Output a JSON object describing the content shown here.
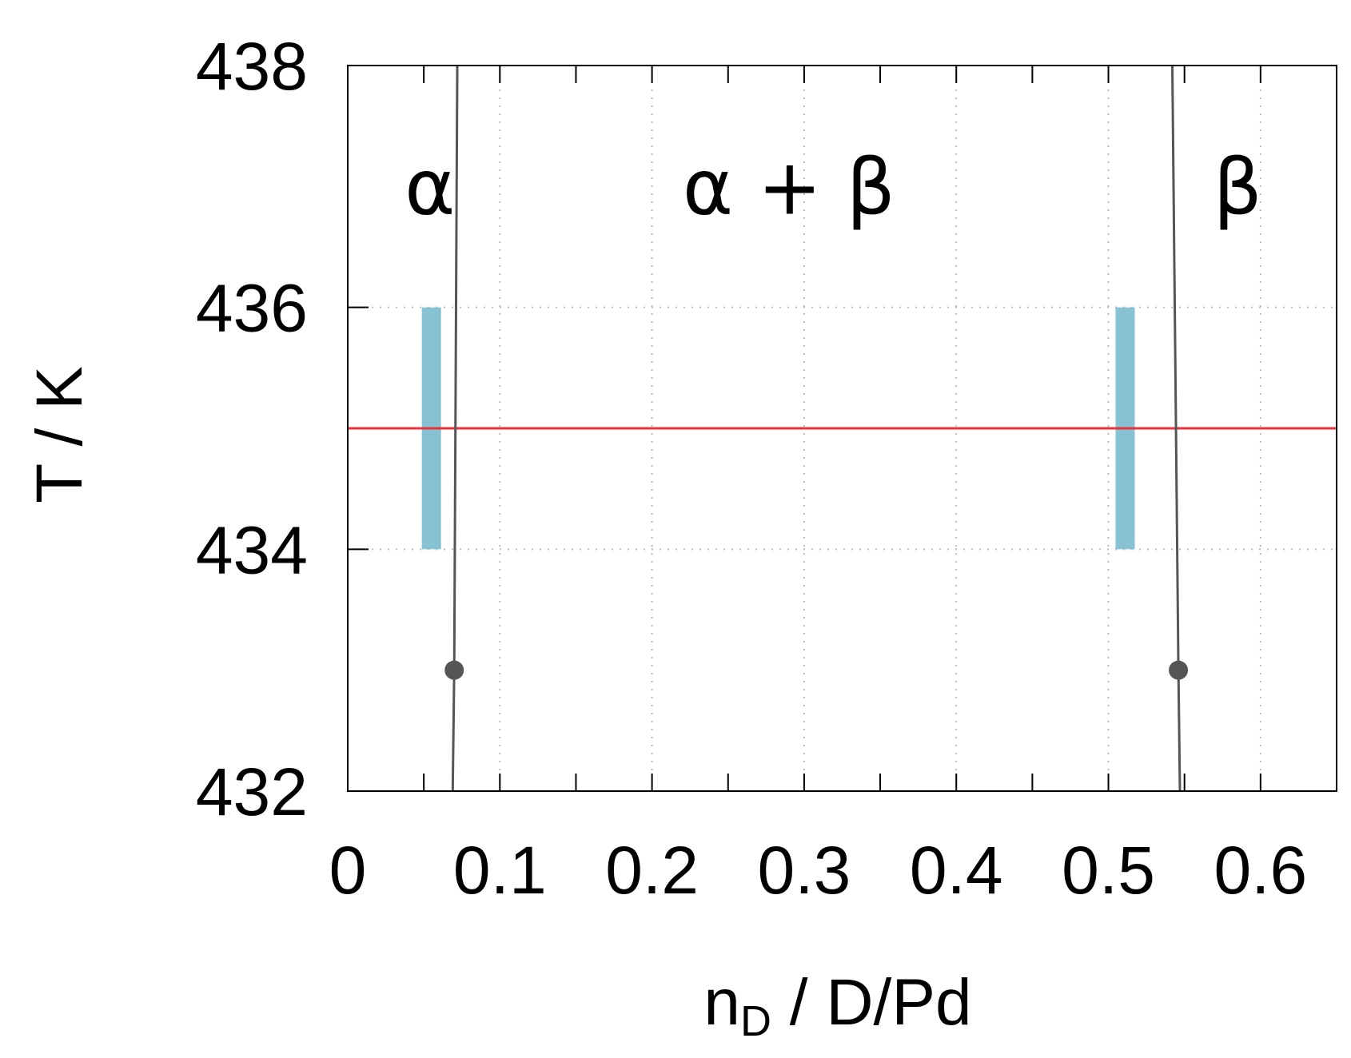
{
  "chart_data": {
    "type": "line",
    "xlabel": {
      "main": "n",
      "sub": "D",
      "rest": " / D/Pd"
    },
    "ylabel": "T / K",
    "xlim": [
      0,
      0.65
    ],
    "ylim": [
      432,
      438
    ],
    "xticks": [
      0,
      0.1,
      0.2,
      0.3,
      0.4,
      0.5,
      0.6
    ],
    "xtick_labels": [
      "0",
      "0.1",
      "0.2",
      "0.3",
      "0.4",
      "0.5",
      "0.6"
    ],
    "yticks": [
      432,
      434,
      436,
      438
    ],
    "ytick_labels": [
      "432",
      "434",
      "436",
      "438"
    ],
    "grid": true,
    "phase_labels": [
      {
        "text": "α",
        "x": 0.054,
        "y": 437.0
      },
      {
        "text": "α + β",
        "x": 0.29,
        "y": 437.0
      },
      {
        "text": "β",
        "x": 0.585,
        "y": 437.0
      }
    ],
    "series": [
      {
        "values": [
          [
            0.069,
            432.0
          ],
          [
            0.07,
            433.0
          ],
          [
            0.072,
            438.0
          ]
        ],
        "marker_at": [
          0.07,
          433.0
        ]
      },
      {
        "values": [
          [
            0.547,
            432.0
          ],
          [
            0.546,
            433.0
          ],
          [
            0.542,
            438.0
          ]
        ],
        "marker_at": [
          0.546,
          433.0
        ]
      }
    ],
    "isotherm": {
      "y": 435.0
    },
    "ranges": [
      {
        "x": 0.055,
        "y_min": 434.0,
        "y_max": 436.0
      },
      {
        "x": 0.511,
        "y_min": 434.0,
        "y_max": 436.0
      }
    ],
    "colors": {
      "boundary": "#555555",
      "isotherm": "#e8323c",
      "range": "#86c2d2",
      "axis": "#000000",
      "grid": "#bbbbbb"
    }
  }
}
